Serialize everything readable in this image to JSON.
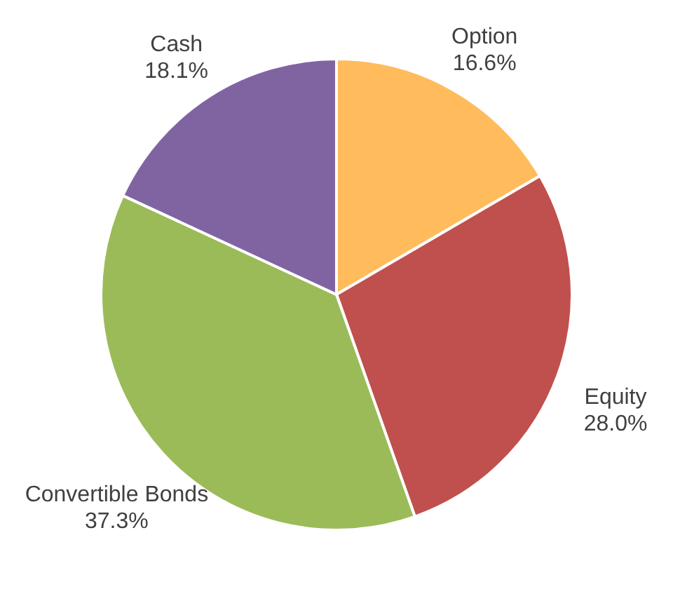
{
  "chart_data": {
    "type": "pie",
    "categories": [
      "Option",
      "Equity",
      "Convertible Bonds",
      "Cash"
    ],
    "values": [
      16.6,
      28.0,
      37.3,
      18.1
    ],
    "colors": [
      "#ffbb5c",
      "#c0504d",
      "#9bbb59",
      "#8064a2"
    ],
    "value_labels": [
      "16.6%",
      "28.0%",
      "37.3%",
      "18.1%"
    ]
  }
}
